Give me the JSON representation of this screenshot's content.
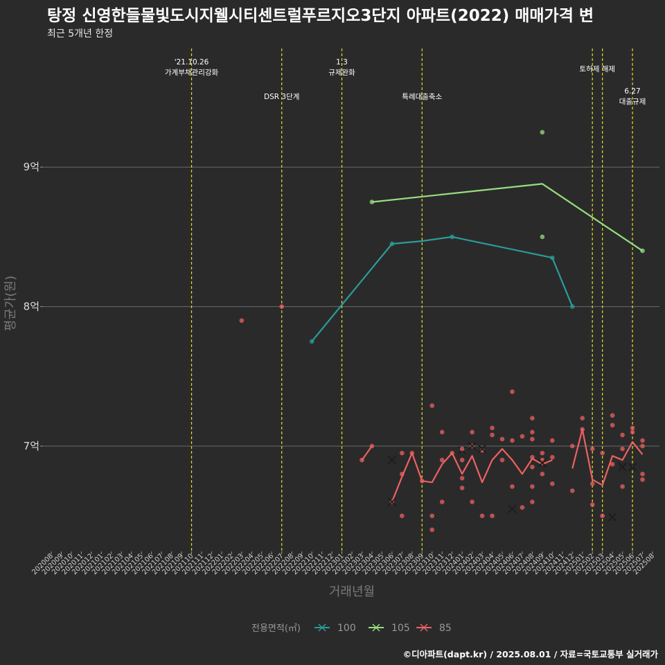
{
  "header": {
    "title": "탕정 신영한들물빛도시지웰시티센트럴푸르지오3단지 아파트(2022) 매매가격 변",
    "subtitle": "최근 5개년 한정"
  },
  "footer": {
    "caption": "©디아파트(dapt.kr) / 2025.08.01 / 자료=국토교통부 실거래가"
  },
  "colors": {
    "background": "#2b2a2b",
    "s100": "#2a9d9a",
    "s105": "#96e07f",
    "s85": "#ec6262",
    "events": "#e0e01e",
    "grid": "#6a6a6a"
  },
  "chart_data": {
    "type": "line",
    "xlabel": "거래년월",
    "ylabel": "평균가(원)",
    "x": [
      "202008",
      "202009",
      "202010",
      "202011",
      "202012",
      "202101",
      "202102",
      "202103",
      "202104",
      "202105",
      "202106",
      "202107",
      "202108",
      "202109",
      "202110",
      "202111",
      "202112",
      "202201",
      "202202",
      "202203",
      "202204",
      "202205",
      "202206",
      "202207",
      "202208",
      "202209",
      "202210",
      "202211",
      "202212",
      "202301",
      "202302",
      "202303",
      "202304",
      "202305",
      "202306",
      "202307",
      "202308",
      "202309",
      "202310",
      "202311",
      "202312",
      "202401",
      "202402",
      "202403",
      "202404",
      "202405",
      "202406",
      "202407",
      "202408",
      "202409",
      "202410",
      "202411",
      "202412",
      "202501",
      "202502",
      "202503",
      "202504",
      "202505",
      "202506",
      "202507",
      "202508"
    ],
    "ylim": [
      6.25,
      9.9
    ],
    "y_ticks": [
      {
        "value": 7,
        "label": "7억"
      },
      {
        "value": 8,
        "label": "8억"
      },
      {
        "value": 9,
        "label": "9억"
      }
    ],
    "legend": {
      "title": "전용면적(㎡)",
      "position": "bottom"
    },
    "series": [
      {
        "name": "100",
        "color": "#2a9d9a",
        "line": [
          [
            "202210",
            7.75
          ],
          [
            "202306",
            8.45
          ],
          [
            "202309",
            8.47
          ],
          [
            "202312",
            8.5
          ],
          [
            "202410",
            8.35
          ],
          [
            "202412",
            8.0
          ]
        ],
        "points": [
          [
            "202210",
            7.75
          ],
          [
            "202306",
            8.45
          ],
          [
            "202312",
            8.5
          ],
          [
            "202410",
            8.35
          ],
          [
            "202412",
            8.0
          ]
        ],
        "crosses": [
          [
            "202401",
            6.97
          ]
        ]
      },
      {
        "name": "105",
        "color": "#96e07f",
        "line": [
          [
            "202304",
            8.75
          ],
          [
            "202409",
            8.88
          ],
          [
            "202507",
            8.4
          ]
        ],
        "points": [
          [
            "202304",
            8.75
          ],
          [
            "202409",
            9.25
          ],
          [
            "202409",
            8.5
          ],
          [
            "202507",
            8.4
          ]
        ],
        "crosses": []
      },
      {
        "name": "85",
        "color": "#ec6262",
        "line": [
          [
            [
              "202303",
              6.9
            ],
            [
              "202304",
              7.0
            ]
          ],
          [
            [
              "202306",
              6.6
            ],
            [
              "202307",
              6.78
            ],
            [
              "202308",
              6.95
            ],
            [
              "202309",
              6.75
            ],
            [
              "202310",
              6.74
            ],
            [
              "202311",
              6.87
            ],
            [
              "202312",
              6.95
            ],
            [
              "202401",
              6.8
            ],
            [
              "202402",
              6.93
            ],
            [
              "202403",
              6.74
            ],
            [
              "202404",
              6.9
            ],
            [
              "202405",
              6.98
            ],
            [
              "202406",
              6.9
            ],
            [
              "202407",
              6.8
            ],
            [
              "202408",
              6.91
            ],
            [
              "202409",
              6.87
            ],
            [
              "202410",
              6.9
            ]
          ],
          [
            [
              "202412",
              6.84
            ],
            [
              "202501",
              7.12
            ],
            [
              "202502",
              6.76
            ],
            [
              "202503",
              6.72
            ],
            [
              "202504",
              6.93
            ],
            [
              "202505",
              6.9
            ],
            [
              "202506",
              7.03
            ],
            [
              "202507",
              6.94
            ]
          ]
        ],
        "points": [
          [
            "202203",
            7.9
          ],
          [
            "202207",
            8.0
          ],
          [
            "202303",
            6.9
          ],
          [
            "202304",
            7.0
          ],
          [
            "202306",
            6.6
          ],
          [
            "202307",
            6.8
          ],
          [
            "202307",
            6.95
          ],
          [
            "202307",
            6.5
          ],
          [
            "202308",
            6.95
          ],
          [
            "202309",
            6.75
          ],
          [
            "202310",
            7.29
          ],
          [
            "202310",
            6.5
          ],
          [
            "202310",
            6.4
          ],
          [
            "202311",
            7.1
          ],
          [
            "202311",
            6.9
          ],
          [
            "202311",
            6.6
          ],
          [
            "202312",
            6.95
          ],
          [
            "202401",
            6.98
          ],
          [
            "202401",
            6.9
          ],
          [
            "202401",
            6.77
          ],
          [
            "202401",
            6.7
          ],
          [
            "202402",
            7.1
          ],
          [
            "202402",
            6.6
          ],
          [
            "202402",
            7.0
          ],
          [
            "202403",
            6.97
          ],
          [
            "202403",
            6.5
          ],
          [
            "202404",
            7.13
          ],
          [
            "202404",
            7.08
          ],
          [
            "202404",
            6.5
          ],
          [
            "202405",
            7.05
          ],
          [
            "202405",
            6.9
          ],
          [
            "202406",
            7.39
          ],
          [
            "202406",
            7.04
          ],
          [
            "202406",
            6.71
          ],
          [
            "202407",
            7.07
          ],
          [
            "202407",
            6.56
          ],
          [
            "202408",
            7.2
          ],
          [
            "202408",
            7.1
          ],
          [
            "202408",
            7.05
          ],
          [
            "202408",
            6.92
          ],
          [
            "202408",
            6.85
          ],
          [
            "202408",
            6.71
          ],
          [
            "202408",
            6.6
          ],
          [
            "202409",
            6.95
          ],
          [
            "202409",
            6.9
          ],
          [
            "202409",
            6.8
          ],
          [
            "202410",
            7.04
          ],
          [
            "202410",
            6.92
          ],
          [
            "202410",
            6.73
          ],
          [
            "202412",
            7.0
          ],
          [
            "202412",
            6.68
          ],
          [
            "202501",
            7.2
          ],
          [
            "202501",
            7.12
          ],
          [
            "202502",
            6.98
          ],
          [
            "202502",
            6.73
          ],
          [
            "202502",
            6.58
          ],
          [
            "202503",
            6.95
          ],
          [
            "202503",
            6.5
          ],
          [
            "202504",
            7.22
          ],
          [
            "202504",
            7.15
          ],
          [
            "202504",
            6.87
          ],
          [
            "202505",
            7.08
          ],
          [
            "202505",
            6.98
          ],
          [
            "202505",
            6.71
          ],
          [
            "202506",
            7.13
          ],
          [
            "202506",
            7.1
          ],
          [
            "202507",
            7.04
          ],
          [
            "202507",
            7.0
          ],
          [
            "202507",
            6.8
          ],
          [
            "202507",
            6.76
          ]
        ],
        "crosses": [
          [
            "202306",
            6.9
          ],
          [
            "202306",
            6.6
          ],
          [
            "202402",
            7.0
          ],
          [
            "202403",
            6.98
          ],
          [
            "202406",
            6.55
          ],
          [
            "202409",
            6.88
          ],
          [
            "202504",
            6.49
          ],
          [
            "202505",
            6.85
          ],
          [
            "202506",
            6.85
          ]
        ]
      }
    ],
    "events": [
      {
        "x": "202110",
        "label_lines": [
          "'21.10.26",
          "가계부채관리강화"
        ],
        "row": 1
      },
      {
        "x": "202207",
        "label_lines": [
          "DSR 3단계"
        ],
        "row": 2
      },
      {
        "x": "202301",
        "label_lines": [
          "1.3",
          "규제완화"
        ],
        "row": 1
      },
      {
        "x": "202309",
        "label_lines": [
          "특례대출축소"
        ],
        "row": 2
      },
      {
        "x": "202502",
        "label_lines": [
          "토허제 해제"
        ],
        "row": 1,
        "anchor": "line2"
      },
      {
        "x": "202503",
        "label_lines": [],
        "row": 1
      },
      {
        "x": "202506",
        "label_lines": [
          "6.27",
          "대출규제"
        ],
        "row": 2,
        "anchor": "line1"
      }
    ]
  }
}
